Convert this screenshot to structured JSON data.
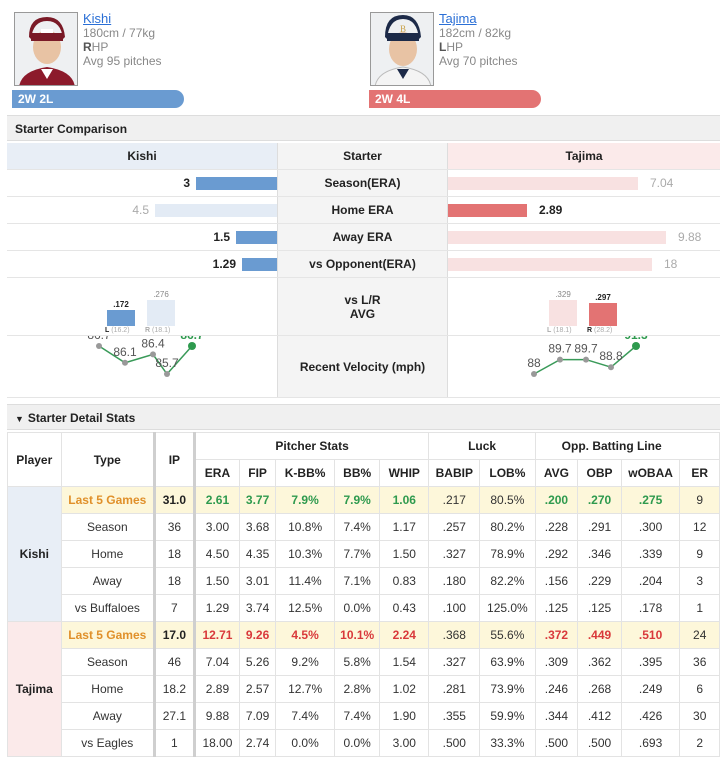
{
  "left": {
    "name": "Kishi",
    "physique": "180cm / 77kg",
    "hand_letter": "R",
    "hand_rest": "HP",
    "avg_pitches": "Avg 95 pitches",
    "record": "2W 2L"
  },
  "right": {
    "name": "Tajima",
    "physique": "182cm / 82kg",
    "hand_letter": "L",
    "hand_rest": "HP",
    "avg_pitches": "Avg 70 pitches",
    "record": "2W 4L"
  },
  "comparison": {
    "title": "Starter Comparison",
    "header": {
      "left": "Kishi",
      "mid": "Starter",
      "right": "Tajima"
    },
    "rows": [
      {
        "label": "Season(ERA)",
        "left": "3",
        "right": "7.04",
        "left_frac": 0.3,
        "right_frac": 0.7,
        "left_strong": true,
        "right_strong": false
      },
      {
        "label": "Home ERA",
        "left": "4.5",
        "right": "2.89",
        "left_frac": 0.45,
        "right_frac": 0.29,
        "left_strong": false,
        "right_strong": true
      },
      {
        "label": "Away ERA",
        "left": "1.5",
        "right": "9.88",
        "left_frac": 0.15,
        "right_frac": 0.8,
        "left_strong": true,
        "right_strong": false
      },
      {
        "label": "vs Opponent(ERA)",
        "left": "1.29",
        "right": "18",
        "left_frac": 0.13,
        "right_frac": 0.75,
        "left_strong": true,
        "right_strong": false
      }
    ],
    "lr": {
      "label1": "vs L/R",
      "label2": "AVG",
      "left": [
        {
          "val": ".172",
          "side": "L",
          "ip": "(16.2)",
          "strong": true
        },
        {
          "val": ".276",
          "side": "R",
          "ip": "(18.1)",
          "strong": false
        }
      ],
      "right": [
        {
          "val": ".329",
          "side": "L",
          "ip": "(18.1)",
          "strong": false
        },
        {
          "val": ".297",
          "side": "R",
          "ip": "(28.2)",
          "strong": true
        }
      ]
    },
    "velo": {
      "label": "Recent Velocity (mph)",
      "left": [
        "86.7",
        "86.1",
        "86.4",
        "85.7",
        "86.7"
      ],
      "right": [
        "88",
        "89.7",
        "89.7",
        "88.8",
        "91.3"
      ]
    }
  },
  "detail": {
    "title": "Starter Detail Stats",
    "head": {
      "player": "Player",
      "type": "Type",
      "ip": "IP",
      "pitcher": "Pitcher Stats",
      "luck": "Luck",
      "opp": "Opp. Batting Line"
    },
    "cols": [
      "ERA",
      "FIP",
      "K-BB%",
      "BB%",
      "WHIP",
      "BABIP",
      "LOB%",
      "AVG",
      "OBP",
      "wOBAA",
      "ER"
    ],
    "players": [
      {
        "name": "Kishi",
        "rows": [
          {
            "type": "Last 5 Games",
            "ip": "31.0",
            "vals": [
              "2.61",
              "3.77",
              "7.9%",
              "7.9%",
              "1.06",
              ".217",
              "80.5%",
              ".200",
              ".270",
              ".275",
              "9"
            ]
          },
          {
            "type": "Season",
            "ip": "36",
            "vals": [
              "3.00",
              "3.68",
              "10.8%",
              "7.4%",
              "1.17",
              ".257",
              "80.2%",
              ".228",
              ".291",
              ".300",
              "12"
            ]
          },
          {
            "type": "Home",
            "ip": "18",
            "vals": [
              "4.50",
              "4.35",
              "10.3%",
              "7.7%",
              "1.50",
              ".327",
              "78.9%",
              ".292",
              ".346",
              ".339",
              "9"
            ]
          },
          {
            "type": "Away",
            "ip": "18",
            "vals": [
              "1.50",
              "3.01",
              "11.4%",
              "7.1%",
              "0.83",
              ".180",
              "82.2%",
              ".156",
              ".229",
              ".204",
              "3"
            ]
          },
          {
            "type": "vs Buffaloes",
            "ip": "7",
            "vals": [
              "1.29",
              "3.74",
              "12.5%",
              "0.0%",
              "0.43",
              ".100",
              "125.0%",
              ".125",
              ".125",
              ".178",
              "1"
            ]
          }
        ]
      },
      {
        "name": "Tajima",
        "rows": [
          {
            "type": "Last 5 Games",
            "ip": "17.0",
            "vals": [
              "12.71",
              "9.26",
              "4.5%",
              "10.1%",
              "2.24",
              ".368",
              "55.6%",
              ".372",
              ".449",
              ".510",
              "24"
            ]
          },
          {
            "type": "Season",
            "ip": "46",
            "vals": [
              "7.04",
              "5.26",
              "9.2%",
              "5.8%",
              "1.54",
              ".327",
              "63.9%",
              ".309",
              ".362",
              ".395",
              "36"
            ]
          },
          {
            "type": "Home",
            "ip": "18.2",
            "vals": [
              "2.89",
              "2.57",
              "12.7%",
              "2.8%",
              "1.02",
              ".281",
              "73.9%",
              ".246",
              ".268",
              ".249",
              "6"
            ]
          },
          {
            "type": "Away",
            "ip": "27.1",
            "vals": [
              "9.88",
              "7.09",
              "7.4%",
              "7.4%",
              "1.90",
              ".355",
              "59.9%",
              ".344",
              ".412",
              ".426",
              "30"
            ]
          },
          {
            "type": "vs Eagles",
            "ip": "1",
            "vals": [
              "18.00",
              "2.74",
              "0.0%",
              "0.0%",
              "3.00",
              ".500",
              "33.3%",
              ".500",
              ".500",
              ".693",
              "2"
            ]
          }
        ]
      }
    ]
  }
}
